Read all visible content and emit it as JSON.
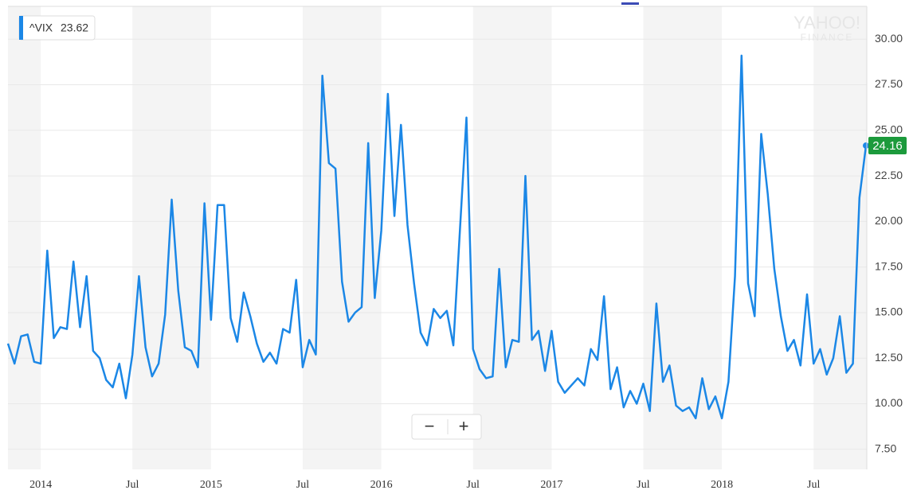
{
  "chart_data": {
    "type": "line",
    "watermark": [
      "YAHOO!",
      "FINANCE"
    ],
    "legend_value": 23.62,
    "zoom_controls": [
      "−",
      "+"
    ],
    "categories": [
      null,
      null,
      null,
      null,
      null,
      "2014",
      null,
      null,
      null,
      null,
      null,
      null,
      null,
      null,
      null,
      null,
      null,
      null,
      null,
      "Jul",
      null,
      null,
      null,
      null,
      null,
      null,
      null,
      null,
      null,
      null,
      null,
      "2015",
      null,
      null,
      null,
      null,
      null,
      null,
      null,
      null,
      null,
      null,
      null,
      null,
      null,
      "Jul",
      null,
      null,
      null,
      null,
      null,
      null,
      null,
      null,
      null,
      null,
      null,
      "2016",
      null,
      null,
      null,
      null,
      null,
      null,
      null,
      null,
      null,
      null,
      null,
      null,
      null,
      "Jul",
      null,
      null,
      null,
      null,
      null,
      null,
      null,
      null,
      null,
      null,
      null,
      "2017",
      null,
      null,
      null,
      null,
      null,
      null,
      null,
      null,
      null,
      null,
      null,
      null,
      null,
      "Jul",
      null,
      null,
      null,
      null,
      null,
      null,
      null,
      null,
      null,
      null,
      null,
      "2018",
      null,
      null,
      null,
      null,
      null,
      null,
      null,
      null,
      null,
      null,
      null,
      null,
      null,
      "Jul",
      null,
      null,
      null,
      null,
      null,
      null,
      null,
      null
    ],
    "series": [
      {
        "name": "^VIX",
        "color": "#1b87e6",
        "values": [
          13.3,
          12.2,
          13.7,
          13.8,
          12.3,
          12.2,
          18.4,
          13.6,
          14.2,
          14.1,
          17.8,
          14.2,
          17.0,
          12.9,
          12.5,
          11.3,
          10.9,
          12.2,
          10.3,
          12.7,
          17.0,
          13.1,
          11.5,
          12.2,
          14.9,
          21.2,
          16.2,
          13.1,
          12.9,
          12.0,
          21.0,
          14.6,
          20.9,
          20.9,
          14.7,
          13.4,
          16.1,
          14.8,
          13.3,
          12.3,
          12.8,
          12.2,
          14.1,
          13.9,
          16.8,
          12.0,
          13.5,
          12.7,
          28.0,
          23.2,
          22.9,
          16.7,
          14.5,
          15.0,
          15.3,
          24.3,
          15.8,
          19.5,
          27.0,
          20.3,
          25.3,
          19.8,
          16.6,
          13.9,
          13.2,
          15.2,
          14.7,
          15.1,
          13.2,
          19.5,
          25.7,
          13.0,
          11.9,
          11.4,
          11.5,
          17.4,
          12.0,
          13.5,
          13.4,
          22.5,
          13.5,
          14.0,
          11.8,
          14.0,
          11.2,
          10.6,
          11.0,
          11.4,
          11.0,
          13.0,
          12.4,
          15.9,
          10.8,
          12.0,
          9.8,
          10.7,
          10.0,
          11.1,
          9.6,
          15.5,
          11.2,
          12.1,
          9.9,
          9.6,
          9.8,
          9.2,
          11.4,
          9.7,
          10.4,
          9.2,
          11.2,
          17.0,
          29.1,
          16.6,
          14.8,
          24.8,
          21.5,
          17.4,
          14.8,
          12.9,
          13.5,
          12.1,
          16.0,
          12.2,
          13.0,
          11.6,
          12.5,
          14.8,
          11.7,
          12.2,
          21.3,
          24.16
        ]
      }
    ],
    "badge_color": "#1c9a3c",
    "ylim": [
      6.4,
      31.8
    ],
    "yticks": [
      {
        "value": 7.5,
        "label": "7.50"
      },
      {
        "value": 10,
        "label": "10.00"
      },
      {
        "value": 12.5,
        "label": "12.50"
      },
      {
        "value": 15,
        "label": "15.00"
      },
      {
        "value": 17.5,
        "label": "17.50"
      },
      {
        "value": 20,
        "label": "20.00"
      },
      {
        "value": 22.5,
        "label": "22.50"
      },
      {
        "value": 25,
        "label": "25.00"
      },
      {
        "value": 27.5,
        "label": "27.50"
      },
      {
        "value": 30,
        "label": "30.00"
      }
    ],
    "grid": true
  }
}
